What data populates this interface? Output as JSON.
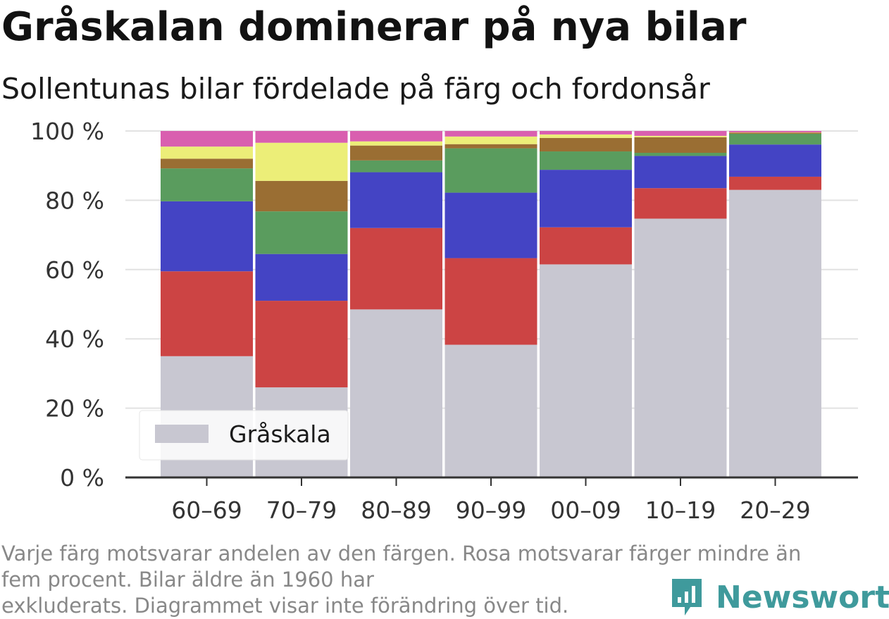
{
  "title": "Gråskalan dominerar på nya bilar",
  "subtitle": "Sollentunas bilar fördelade på färg och fordonsår",
  "note_lines": [
    "Varje färg motsvarar andelen av den färgen. Rosa motsvarar färger mindre än",
    "fem procent. Bilar äldre än 1960 har",
    "exkluderats. Diagrammet visar inte förändring över tid."
  ],
  "brand": {
    "name": "Newsworthy",
    "color": "#3f9a9c"
  },
  "chart_data": {
    "type": "bar",
    "stacked": true,
    "categories": [
      "60–69",
      "70–79",
      "80–89",
      "90–99",
      "00–09",
      "10–19",
      "20–29"
    ],
    "series": [
      {
        "name": "Gråskala",
        "color": "#c8c7d1",
        "values": [
          35,
          26,
          48.5,
          38.3,
          61.5,
          74.7,
          83
        ]
      },
      {
        "color": "#cc4444",
        "values": [
          24.5,
          25,
          23.5,
          25,
          10.7,
          8.8,
          3.8
        ]
      },
      {
        "color": "#4444c4",
        "values": [
          20.2,
          13.5,
          16.1,
          18.9,
          16.6,
          9.3,
          9.3
        ]
      },
      {
        "color": "#5a9c5e",
        "values": [
          9.5,
          12.3,
          3.4,
          12.8,
          5.3,
          0.9,
          3.1
        ]
      },
      {
        "color": "#9a6e33",
        "values": [
          2.8,
          8.8,
          4.3,
          1.2,
          3.9,
          4.5,
          0.3
        ]
      },
      {
        "color": "#ecee78",
        "values": [
          3.5,
          11,
          1.2,
          2.2,
          1,
          0.4,
          0.1
        ]
      },
      {
        "color": "#d95faf",
        "values": [
          4.5,
          3.4,
          3,
          1.6,
          1,
          1.4,
          0.4
        ]
      }
    ],
    "yticks": [
      "0 %",
      "20 %",
      "40 %",
      "60 %",
      "80 %",
      "100 %"
    ],
    "ylim": [
      0,
      100
    ],
    "legend": {
      "entries": [
        "Gråskala"
      ],
      "placement": "bottom-left"
    },
    "grid": true
  }
}
